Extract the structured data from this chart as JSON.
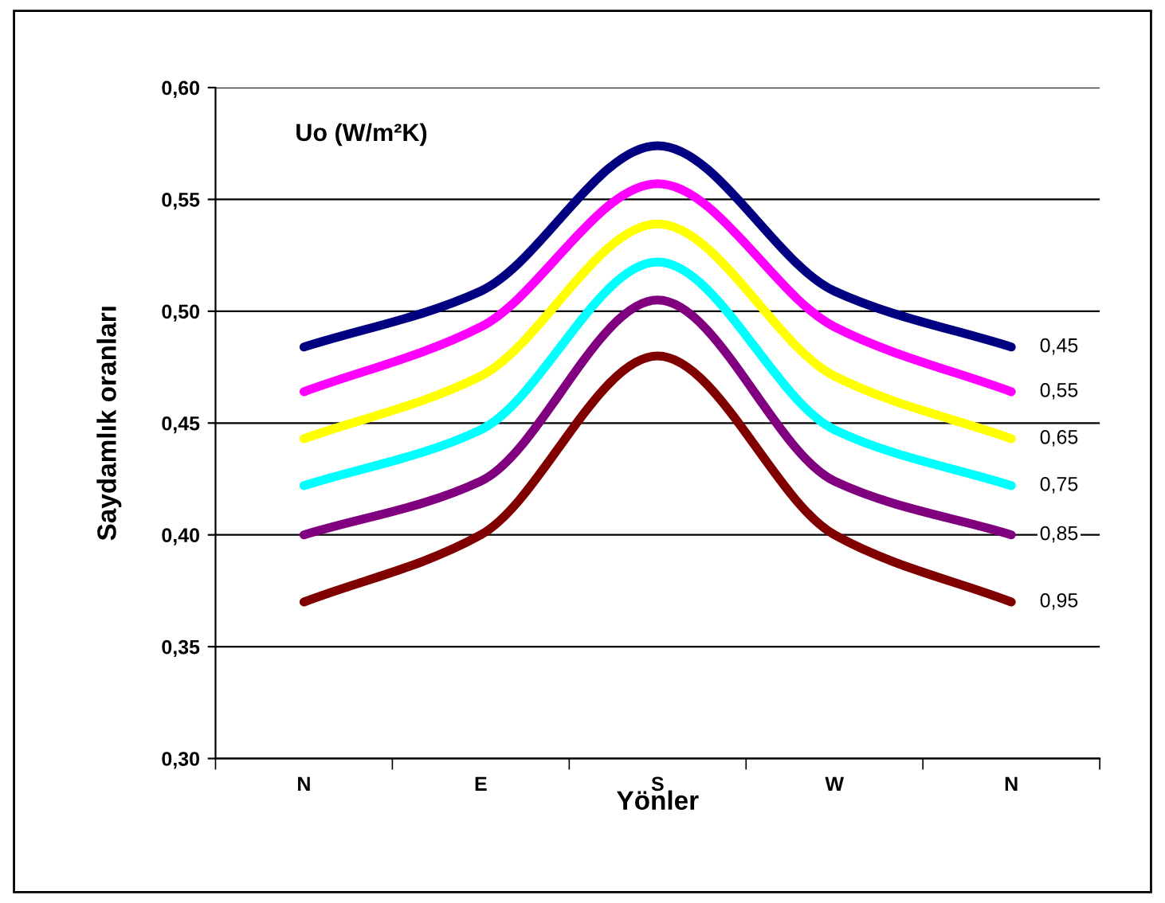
{
  "chart_data": {
    "type": "line",
    "xlabel": "Yönler",
    "ylabel": "Saydamlık oranları",
    "legend_title": "Uo (W/m²K)",
    "categories": [
      "N",
      "E",
      "S",
      "W",
      "N"
    ],
    "series": [
      {
        "name": "0,45",
        "color": "#000080",
        "values": [
          0.484,
          0.509,
          0.574,
          0.509,
          0.484
        ]
      },
      {
        "name": "0,55",
        "color": "#ff00ff",
        "values": [
          0.464,
          0.493,
          0.557,
          0.493,
          0.464
        ]
      },
      {
        "name": "0,65",
        "color": "#ffff00",
        "values": [
          0.443,
          0.471,
          0.539,
          0.471,
          0.443
        ]
      },
      {
        "name": "0,75",
        "color": "#00ffff",
        "values": [
          0.422,
          0.447,
          0.522,
          0.447,
          0.422
        ]
      },
      {
        "name": "0,85",
        "color": "#800080",
        "values": [
          0.4,
          0.424,
          0.505,
          0.424,
          0.4
        ]
      },
      {
        "name": "0,95",
        "color": "#800000",
        "values": [
          0.37,
          0.4,
          0.48,
          0.4,
          0.37
        ]
      }
    ],
    "ylim": [
      0.3,
      0.6
    ],
    "yticks": [
      {
        "value": 0.3,
        "label": "0,30"
      },
      {
        "value": 0.35,
        "label": "0,35"
      },
      {
        "value": 0.4,
        "label": "0,40"
      },
      {
        "value": 0.45,
        "label": "0,45"
      },
      {
        "value": 0.5,
        "label": "0,50"
      },
      {
        "value": 0.55,
        "label": "0,55"
      },
      {
        "value": 0.6,
        "label": "0,60"
      }
    ],
    "grid": "y",
    "legend": false,
    "marker": "none",
    "line_style": "solid"
  }
}
